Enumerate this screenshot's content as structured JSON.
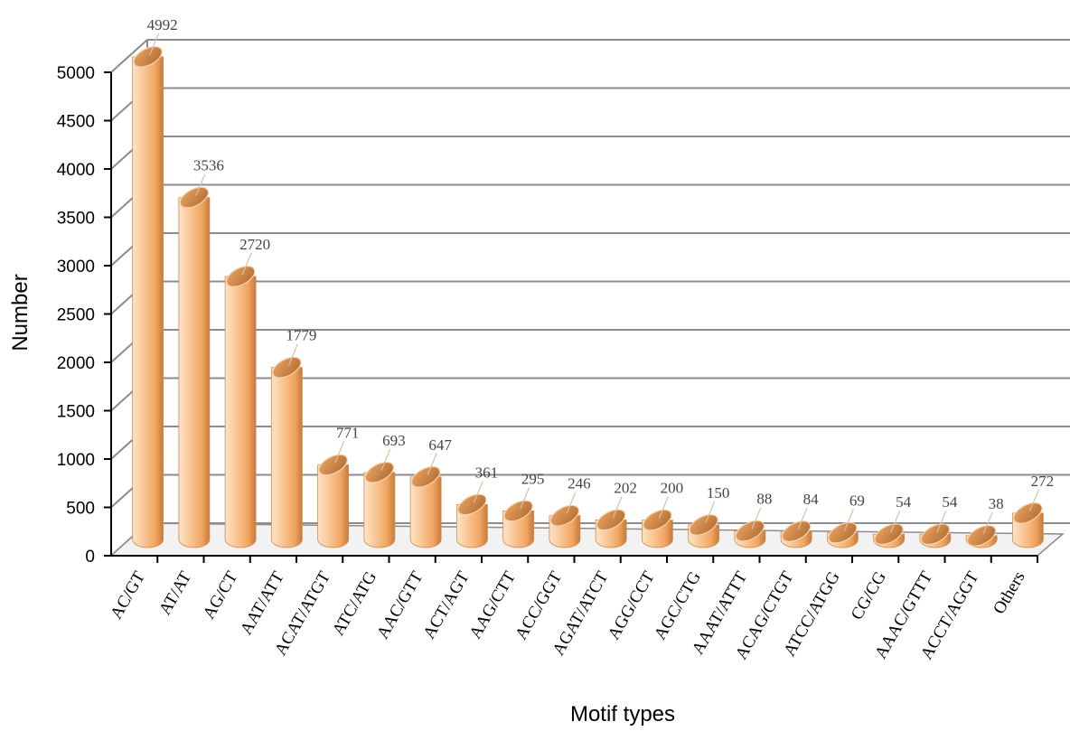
{
  "chart_data": {
    "type": "bar",
    "title": "",
    "xlabel": "Motif types",
    "ylabel": "Number",
    "ylim": [
      0,
      5000
    ],
    "yticks": [
      0,
      500,
      1000,
      1500,
      2000,
      2500,
      3000,
      3500,
      4000,
      4500,
      5000
    ],
    "grid": true,
    "legend": "none",
    "style": "3d-cylinder",
    "colors": {
      "bar_light": "#fde3c8",
      "bar_mid": "#f5b27a",
      "bar_dark": "#c77a3c",
      "grid": "#8c8c8c"
    },
    "categories": [
      "AC/GT",
      "AT/AT",
      "AG/CT",
      "AAT/ATT",
      "ACAT/ATGT",
      "ATC/ATG",
      "AAC/GTT",
      "ACT/AGT",
      "AAG/CTT",
      "ACC/GGT",
      "AGAT/ATCT",
      "AGG/CCT",
      "AGC/CTG",
      "AAAT/ATTT",
      "ACAG/CTGT",
      "ATCC/ATGG",
      "CG/CG",
      "AAAC/GTTT",
      "ACCT/AGGT",
      "Others"
    ],
    "values": [
      4992,
      3536,
      2720,
      1779,
      771,
      693,
      647,
      361,
      295,
      246,
      202,
      200,
      150,
      88,
      84,
      69,
      54,
      54,
      38,
      272
    ]
  }
}
